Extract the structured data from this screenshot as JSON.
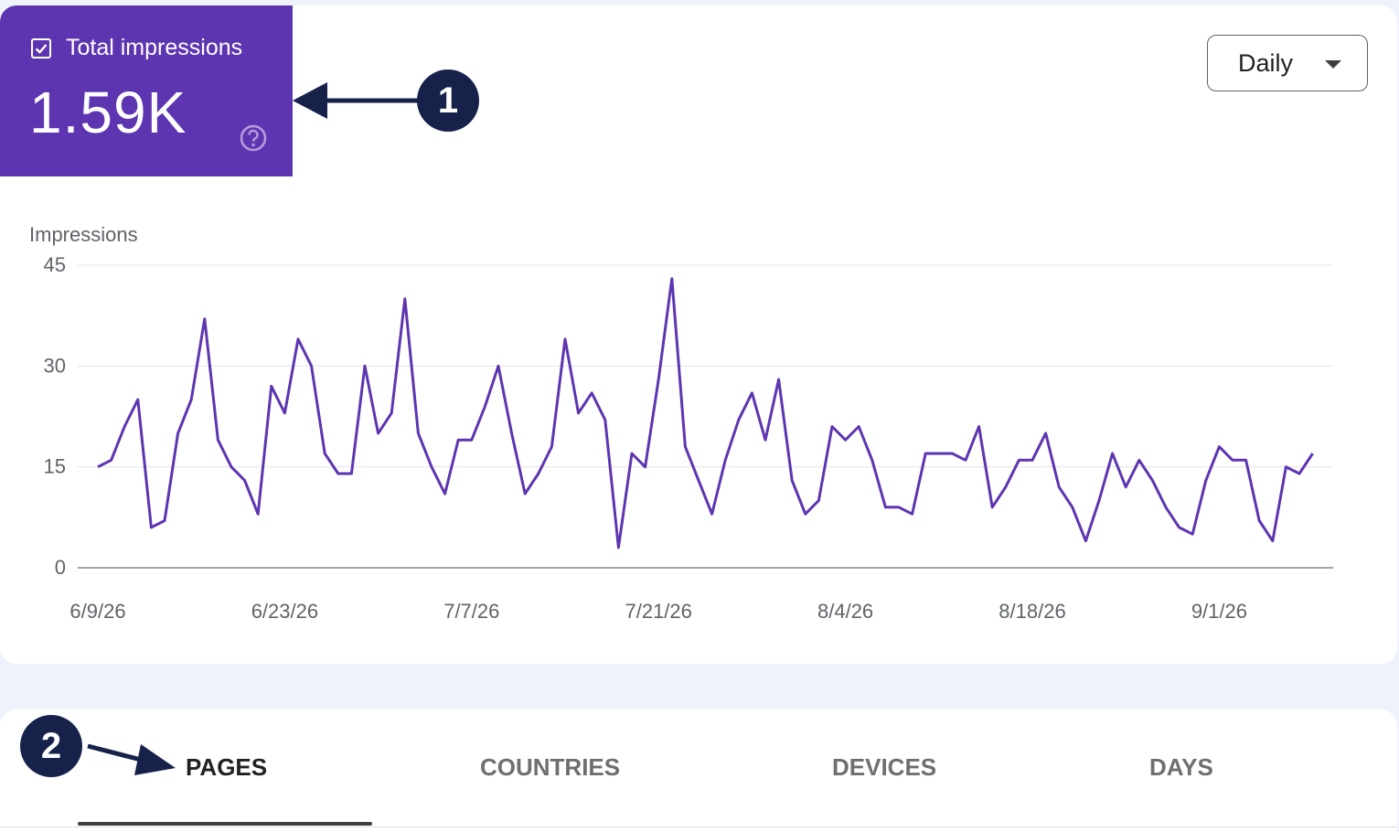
{
  "metric": {
    "label": "Total impressions",
    "value": "1.59K",
    "checked": true,
    "color": "#5e35b1"
  },
  "period_select": {
    "selected": "Daily"
  },
  "annotations": {
    "badge1": "1",
    "badge2": "2"
  },
  "chart_data": {
    "type": "line",
    "ylabel": "Impressions",
    "ylim": [
      0,
      45
    ],
    "yticks": [
      0,
      15,
      30,
      45
    ],
    "xtick_labels": [
      "6/9/26",
      "6/23/26",
      "7/7/26",
      "7/21/26",
      "8/4/26",
      "8/18/26",
      "9/1/26"
    ],
    "x_start": "6/9/26",
    "x_end": "9/7/26",
    "grid": true,
    "line_color": "#5e35b1",
    "series": [
      {
        "values": [
          15,
          16,
          21,
          25,
          6,
          7,
          20,
          25,
          37,
          19,
          15,
          13,
          8,
          27,
          23,
          34,
          30,
          17,
          14,
          14,
          30,
          20,
          23,
          40,
          20,
          15,
          11,
          19,
          19,
          24,
          30,
          20,
          11,
          14,
          18,
          34,
          23,
          26,
          22,
          3,
          17,
          15,
          28,
          43,
          18,
          13,
          8,
          16,
          22,
          26,
          19,
          28,
          13,
          8,
          10,
          21,
          19,
          21,
          16,
          9,
          9,
          8,
          17,
          17,
          17,
          16,
          21,
          9,
          12,
          16,
          16,
          20,
          12,
          9,
          4,
          10,
          17,
          12,
          16,
          13,
          9,
          6,
          5,
          13,
          18,
          16,
          16,
          7,
          4,
          15,
          14,
          17
        ]
      }
    ]
  },
  "tabs": [
    {
      "label": "PAGES",
      "active": true
    },
    {
      "label": "COUNTRIES",
      "active": false
    },
    {
      "label": "DEVICES",
      "active": false
    },
    {
      "label": "DAYS",
      "active": false
    }
  ]
}
